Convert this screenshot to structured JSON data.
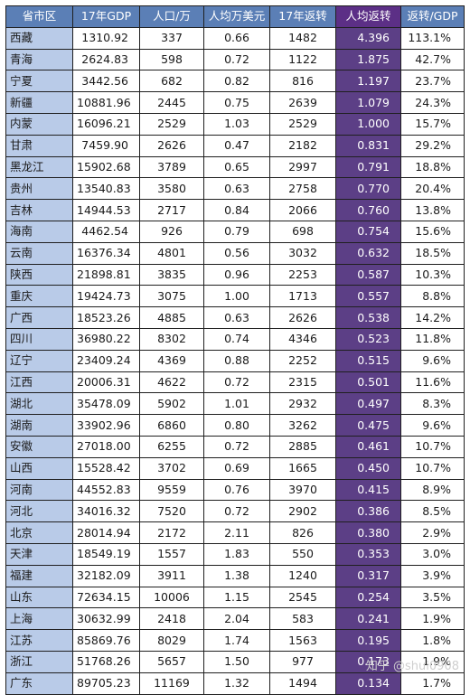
{
  "table": {
    "headers": [
      "省市区",
      "17年GDP",
      "人口/万",
      "人均万美元",
      "17年返转",
      "人均返转",
      "返转/GDP"
    ],
    "rows": [
      [
        "西藏",
        "1310.92",
        "337",
        "0.66",
        "1482",
        "4.396",
        "113.1%"
      ],
      [
        "青海",
        "2624.83",
        "598",
        "0.72",
        "1122",
        "1.875",
        "42.7%"
      ],
      [
        "宁夏",
        "3442.56",
        "682",
        "0.82",
        "816",
        "1.197",
        "23.7%"
      ],
      [
        "新疆",
        "10881.96",
        "2445",
        "0.75",
        "2639",
        "1.079",
        "24.3%"
      ],
      [
        "内蒙",
        "16096.21",
        "2529",
        "1.03",
        "2529",
        "1.000",
        "15.7%"
      ],
      [
        "甘肃",
        "7459.90",
        "2626",
        "0.47",
        "2182",
        "0.831",
        "29.2%"
      ],
      [
        "黑龙江",
        "15902.68",
        "3789",
        "0.65",
        "2997",
        "0.791",
        "18.8%"
      ],
      [
        "贵州",
        "13540.83",
        "3580",
        "0.63",
        "2758",
        "0.770",
        "20.4%"
      ],
      [
        "吉林",
        "14944.53",
        "2717",
        "0.84",
        "2066",
        "0.760",
        "13.8%"
      ],
      [
        "海南",
        "4462.54",
        "926",
        "0.79",
        "698",
        "0.754",
        "15.6%"
      ],
      [
        "云南",
        "16376.34",
        "4801",
        "0.56",
        "3032",
        "0.632",
        "18.5%"
      ],
      [
        "陕西",
        "21898.81",
        "3835",
        "0.96",
        "2253",
        "0.587",
        "10.3%"
      ],
      [
        "重庆",
        "19424.73",
        "3075",
        "1.00",
        "1713",
        "0.557",
        "8.8%"
      ],
      [
        "广西",
        "18523.26",
        "4885",
        "0.63",
        "2626",
        "0.538",
        "14.2%"
      ],
      [
        "四川",
        "36980.22",
        "8302",
        "0.74",
        "4346",
        "0.523",
        "11.8%"
      ],
      [
        "辽宁",
        "23409.24",
        "4369",
        "0.88",
        "2252",
        "0.515",
        "9.6%"
      ],
      [
        "江西",
        "20006.31",
        "4622",
        "0.72",
        "2315",
        "0.501",
        "11.6%"
      ],
      [
        "湖北",
        "35478.09",
        "5902",
        "1.01",
        "2932",
        "0.497",
        "8.3%"
      ],
      [
        "湖南",
        "33902.96",
        "6860",
        "0.80",
        "3262",
        "0.475",
        "9.6%"
      ],
      [
        "安徽",
        "27018.00",
        "6255",
        "0.72",
        "2885",
        "0.461",
        "10.7%"
      ],
      [
        "山西",
        "15528.42",
        "3702",
        "0.69",
        "1665",
        "0.450",
        "10.7%"
      ],
      [
        "河南",
        "44552.83",
        "9559",
        "0.76",
        "3970",
        "0.415",
        "8.9%"
      ],
      [
        "河北",
        "34016.32",
        "7520",
        "0.72",
        "2902",
        "0.386",
        "8.5%"
      ],
      [
        "北京",
        "28014.94",
        "2172",
        "2.11",
        "826",
        "0.380",
        "2.9%"
      ],
      [
        "天津",
        "18549.19",
        "1557",
        "1.83",
        "550",
        "0.353",
        "3.0%"
      ],
      [
        "福建",
        "32182.09",
        "3911",
        "1.38",
        "1240",
        "0.317",
        "3.9%"
      ],
      [
        "山东",
        "72634.15",
        "10006",
        "1.15",
        "2545",
        "0.254",
        "3.5%"
      ],
      [
        "上海",
        "30632.99",
        "2418",
        "2.04",
        "583",
        "0.241",
        "1.9%"
      ],
      [
        "江苏",
        "85869.76",
        "8029",
        "1.74",
        "1563",
        "0.195",
        "1.8%"
      ],
      [
        "浙江",
        "51768.26",
        "5657",
        "1.50",
        "977",
        "0.173",
        "1.9%"
      ],
      [
        "广东",
        "89705.23",
        "11169",
        "1.32",
        "1494",
        "0.134",
        "1.7%"
      ]
    ]
  },
  "watermark": {
    "text": "知乎 @shui0908"
  }
}
